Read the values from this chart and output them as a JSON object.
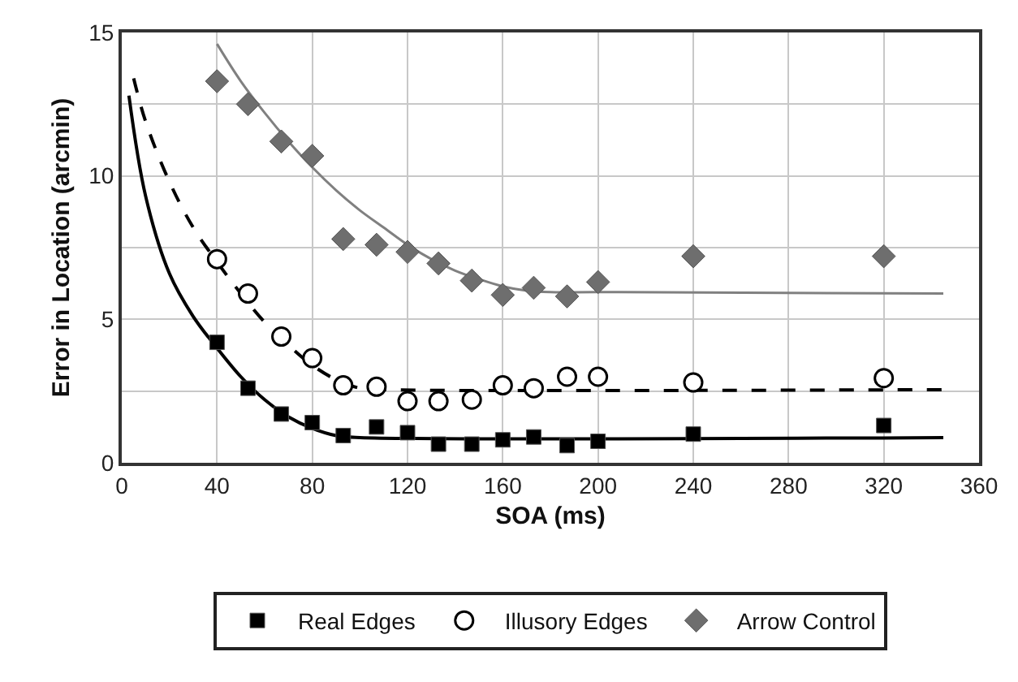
{
  "chart_data": {
    "type": "scatter",
    "xlabel": "SOA (ms)",
    "ylabel": "Error in Location (arcmin)",
    "xlim": [
      0,
      360
    ],
    "xticks": [
      0,
      40,
      80,
      120,
      160,
      200,
      240,
      280,
      320,
      360
    ],
    "ylim": [
      0,
      15
    ],
    "yticks": [
      0,
      {
        "value": 2.5,
        "label": null
      },
      5,
      {
        "value": 7.5,
        "label": null
      },
      10,
      {
        "value": 12.5,
        "label": null
      },
      15
    ],
    "grid": true,
    "legend": "bottom",
    "series": [
      {
        "name": "Real Edges",
        "marker": "square",
        "color": "#000000",
        "x": [
          40,
          53,
          67,
          80,
          93,
          107,
          120,
          133,
          147,
          160,
          173,
          187,
          200,
          240,
          320
        ],
        "values": [
          4.2,
          2.6,
          1.7,
          1.4,
          0.95,
          1.25,
          1.05,
          0.65,
          0.65,
          0.8,
          0.9,
          0.6,
          0.75,
          1.0,
          1.3
        ]
      },
      {
        "name": "Illusory Edges",
        "marker": "circle",
        "color": "#ffffff",
        "x": [
          40,
          53,
          67,
          80,
          93,
          107,
          120,
          133,
          147,
          160,
          173,
          187,
          200,
          240,
          320
        ],
        "values": [
          7.1,
          5.9,
          4.4,
          3.65,
          2.7,
          2.65,
          2.15,
          2.15,
          2.2,
          2.7,
          2.6,
          3.0,
          3.0,
          2.8,
          2.95
        ]
      },
      {
        "name": "Arrow Control",
        "marker": "diamond",
        "color": "#6e6e6e",
        "x": [
          40,
          53,
          67,
          80,
          93,
          107,
          120,
          133,
          147,
          160,
          173,
          187,
          200,
          240,
          320
        ],
        "values": [
          13.3,
          12.5,
          11.2,
          10.7,
          7.8,
          7.6,
          7.35,
          6.95,
          6.35,
          5.85,
          6.1,
          5.8,
          6.3,
          7.2,
          7.2
        ]
      },
      {
        "type": "line",
        "line_style": "solid",
        "color": "#000000",
        "x": [
          3,
          10,
          20,
          30,
          40,
          50,
          60,
          70,
          80,
          90,
          100,
          345
        ],
        "values": [
          12.8,
          9.3,
          6.6,
          5.1,
          4.0,
          3.0,
          2.2,
          1.6,
          1.2,
          0.95,
          0.88,
          0.88
        ]
      },
      {
        "type": "line",
        "line_style": "dashed",
        "color": "#000000",
        "x": [
          5,
          10,
          20,
          30,
          40,
          50,
          60,
          70,
          80,
          90,
          100,
          110,
          345
        ],
        "values": [
          13.4,
          11.9,
          9.8,
          8.2,
          7.0,
          5.9,
          4.9,
          4.1,
          3.4,
          2.9,
          2.6,
          2.55,
          2.55
        ]
      },
      {
        "type": "line",
        "line_style": "solid",
        "color": "#808080",
        "x": [
          40,
          50,
          60,
          70,
          80,
          90,
          100,
          110,
          120,
          130,
          140,
          150,
          160,
          170,
          180,
          200,
          345
        ],
        "values": [
          14.6,
          13.3,
          12.2,
          11.2,
          10.3,
          9.5,
          8.8,
          8.2,
          7.6,
          7.1,
          6.7,
          6.4,
          6.15,
          6.0,
          5.95,
          5.95,
          5.9
        ]
      }
    ]
  }
}
